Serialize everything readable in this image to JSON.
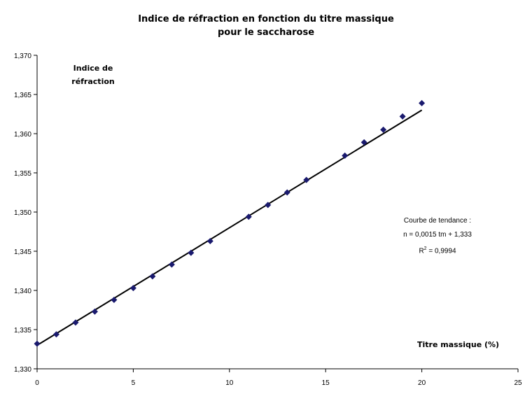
{
  "chart_data": {
    "type": "scatter",
    "title_line1": "Indice de réfraction en fonction du titre massique",
    "title_line2": "pour le saccharose",
    "ylabel_line1": "Indice de",
    "ylabel_line2": "réfraction",
    "xlabel": "Titre massique (%)",
    "xlim": [
      0,
      25
    ],
    "ylim": [
      1.33,
      1.37
    ],
    "x_ticks": [
      "0",
      "5",
      "10",
      "15",
      "20",
      "25"
    ],
    "y_ticks": [
      "1,330",
      "1,335",
      "1,340",
      "1,345",
      "1,350",
      "1,355",
      "1,360",
      "1,365",
      "1,370"
    ],
    "grid": false,
    "series": [
      {
        "color": "#1a1a6e",
        "marker": "diamond",
        "x": [
          0,
          1,
          2,
          3,
          4,
          5,
          6,
          7,
          8,
          9,
          11,
          12,
          13,
          14,
          16,
          17,
          18,
          19,
          20
        ],
        "y": [
          1.3332,
          1.3344,
          1.3359,
          1.3373,
          1.3388,
          1.3403,
          1.3418,
          1.3433,
          1.3448,
          1.3463,
          1.3494,
          1.3509,
          1.3525,
          1.3541,
          1.3572,
          1.3589,
          1.3605,
          1.3622,
          1.3639
        ]
      }
    ],
    "trendline": {
      "slope": 0.0015,
      "intercept": 1.333,
      "x_range": [
        0,
        20
      ],
      "color": "#000000",
      "label_line1": "Courbe de tendance :",
      "label_line2": "n = 0,0015 tm + 1,333",
      "label_line3_prefix": "R",
      "label_line3_sup": "2",
      "label_line3_suffix": " = 0,9994"
    }
  }
}
